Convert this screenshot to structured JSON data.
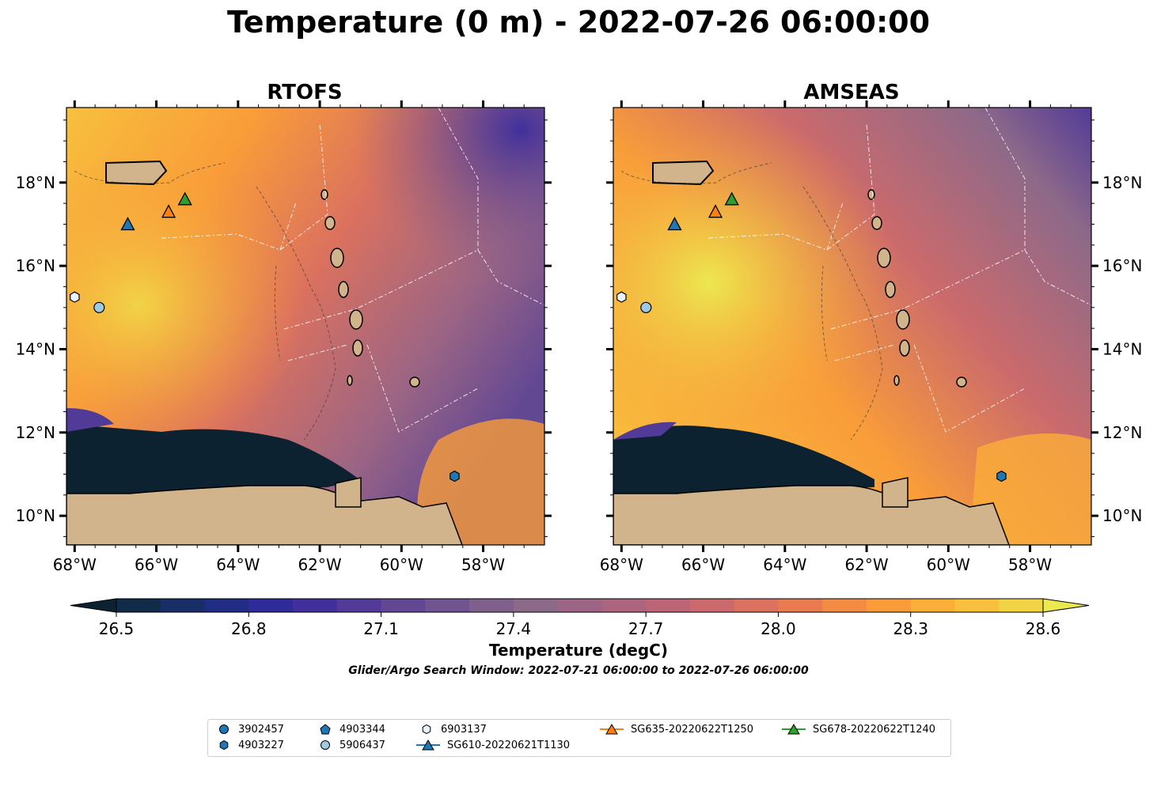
{
  "title": "Temperature (0 m) - 2022-07-26 06:00:00",
  "panels": [
    {
      "title": "RTOFS",
      "model": "rtofs"
    },
    {
      "title": "AMSEAS",
      "model": "amseas"
    }
  ],
  "axes": {
    "lon_ticks": [
      "68°W",
      "66°W",
      "64°W",
      "62°W",
      "60°W",
      "58°W"
    ],
    "lat_ticks": [
      "18°N",
      "16°N",
      "14°N",
      "12°N",
      "10°N"
    ]
  },
  "colorbar": {
    "label": "Temperature (degC)",
    "ticks": [
      "26.5",
      "26.8",
      "27.1",
      "27.4",
      "27.7",
      "28.0",
      "28.3",
      "28.6"
    ],
    "colors": [
      "#0d2230",
      "#112c48",
      "#172f66",
      "#212d84",
      "#2f2b9a",
      "#41309c",
      "#523b98",
      "#624893",
      "#71548f",
      "#7f5f8b",
      "#8d6989",
      "#9c6584",
      "#ab657e",
      "#bb6576",
      "#cb6a6c",
      "#db715f",
      "#ea7a50",
      "#f48b42",
      "#f99c39",
      "#fbae38",
      "#f8c03d",
      "#f1d446",
      "#ece84f"
    ]
  },
  "search_window": "Glider/Argo Search Window: 2022-07-21 06:00:00 to 2022-07-26 06:00:00",
  "legend": [
    {
      "label": "3902457",
      "marker": "circle",
      "color": "#1f77b4"
    },
    {
      "label": "4903227",
      "marker": "hexagon",
      "color": "#1f77b4"
    },
    {
      "label": "4903344",
      "marker": "pentagon",
      "color": "#1f77b4"
    },
    {
      "label": "5906437",
      "marker": "circle",
      "color": "#9ecae1"
    },
    {
      "label": "6903137",
      "marker": "hexagon",
      "color": "#e8f3fb"
    },
    {
      "label": "SG610-20220621T1130",
      "marker": "triangle-line",
      "color": "#1f77b4"
    },
    {
      "label": "SG635-20220622T1250",
      "marker": "triangle-line",
      "color": "#ff7f0e"
    },
    {
      "label": "SG678-20220622T1240",
      "marker": "triangle-line",
      "color": "#2ca02c"
    }
  ],
  "chart_data": {
    "type": "heatmap",
    "variable": "Temperature",
    "units": "degC",
    "depth_m": 0,
    "time": "2022-07-26 06:00:00",
    "extent": {
      "lon": [
        -68.2,
        -56.5
      ],
      "lat": [
        9.3,
        19.8
      ]
    },
    "vmin": 26.5,
    "vmax": 28.6,
    "observations": [
      {
        "id": "SG610-20220621T1130",
        "type": "glider",
        "lon": -66.7,
        "lat": 17.0
      },
      {
        "id": "SG635-20220622T1250",
        "type": "glider",
        "lon": -65.7,
        "lat": 17.3
      },
      {
        "id": "SG678-20220622T1240",
        "type": "glider",
        "lon": -65.3,
        "lat": 17.6
      },
      {
        "id": "6903137",
        "type": "argo",
        "lon": -68.0,
        "lat": 15.25
      },
      {
        "id": "5906437",
        "type": "argo",
        "lon": -67.4,
        "lat": 15.0
      },
      {
        "id": "4903227",
        "type": "argo",
        "lon": -58.7,
        "lat": 10.95
      }
    ]
  }
}
